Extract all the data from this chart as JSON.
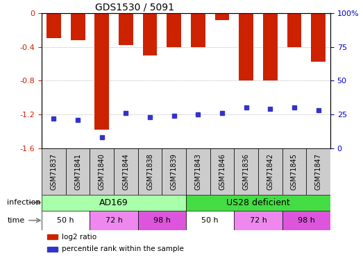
{
  "title": "GDS1530 / 5091",
  "samples": [
    "GSM71837",
    "GSM71841",
    "GSM71840",
    "GSM71844",
    "GSM71838",
    "GSM71839",
    "GSM71843",
    "GSM71846",
    "GSM71836",
    "GSM71842",
    "GSM71845",
    "GSM71847"
  ],
  "log2_ratio": [
    -0.3,
    -0.32,
    -1.38,
    -0.38,
    -0.5,
    -0.4,
    -0.4,
    -0.08,
    -0.8,
    -0.8,
    -0.4,
    -0.58
  ],
  "percentile_rank": [
    22,
    21,
    8,
    26,
    23,
    24,
    25,
    26,
    30,
    29,
    30,
    28
  ],
  "ylim_left": [
    -1.6,
    0
  ],
  "ylim_right": [
    0,
    100
  ],
  "yticks_left": [
    0,
    -0.4,
    -0.8,
    -1.2,
    -1.6
  ],
  "yticks_right": [
    0,
    25,
    50,
    75,
    100
  ],
  "bar_color": "#cc2200",
  "blue_color": "#3333cc",
  "infection_ad169_color": "#aaffaa",
  "infection_us28_color": "#44dd44",
  "grid_color": "#888888",
  "tick_label_color_left": "#cc2200",
  "tick_label_color_right": "#0000cc",
  "infection_groups": [
    {
      "label": "AD169",
      "start": 0,
      "end": 6
    },
    {
      "label": "US28 deficient",
      "start": 6,
      "end": 12
    }
  ],
  "time_groups": [
    {
      "label": "50 h",
      "start": 0,
      "end": 2,
      "color": "#ffffff"
    },
    {
      "label": "72 h",
      "start": 2,
      "end": 4,
      "color": "#ee88ee"
    },
    {
      "label": "98 h",
      "start": 4,
      "end": 6,
      "color": "#dd55dd"
    },
    {
      "label": "50 h",
      "start": 6,
      "end": 8,
      "color": "#ffffff"
    },
    {
      "label": "72 h",
      "start": 8,
      "end": 10,
      "color": "#ee88ee"
    },
    {
      "label": "98 h",
      "start": 10,
      "end": 12,
      "color": "#dd55dd"
    }
  ],
  "legend_items": [
    {
      "label": "log2 ratio",
      "color": "#cc2200"
    },
    {
      "label": "percentile rank within the sample",
      "color": "#3333cc"
    }
  ]
}
